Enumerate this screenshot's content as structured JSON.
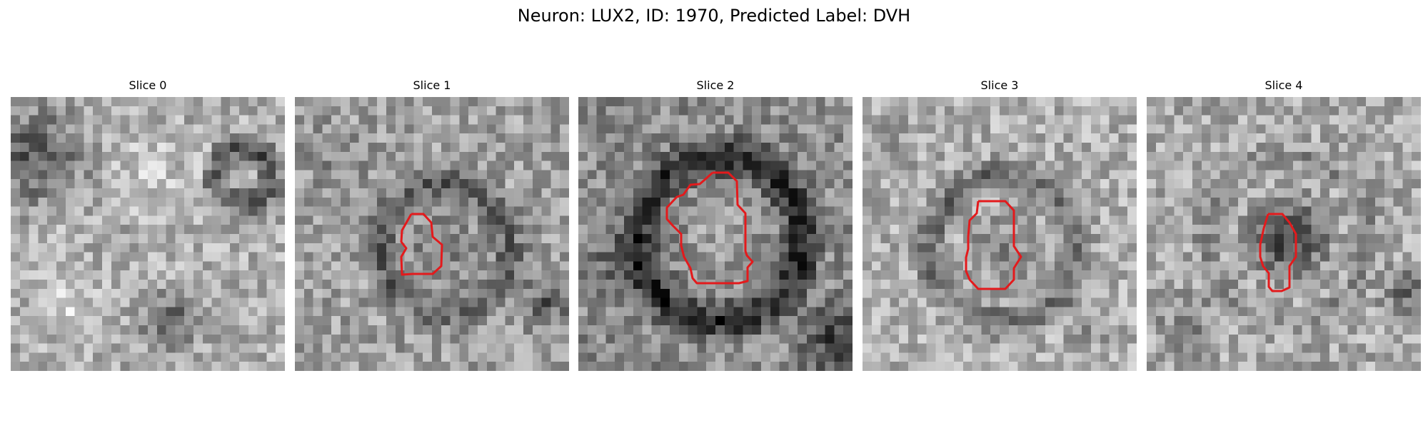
{
  "figure": {
    "title": "Neuron: LUX2, ID: 1970, Predicted Label: DVH"
  },
  "panels": [
    {
      "title": "Slice 0",
      "has_contour": false
    },
    {
      "title": "Slice 1",
      "has_contour": true
    },
    {
      "title": "Slice 2",
      "has_contour": true
    },
    {
      "title": "Slice 3",
      "has_contour": true
    },
    {
      "title": "Slice 4",
      "has_contour": true
    }
  ],
  "colors": {
    "contour": "#e31a1c",
    "background": "#ffffff"
  }
}
